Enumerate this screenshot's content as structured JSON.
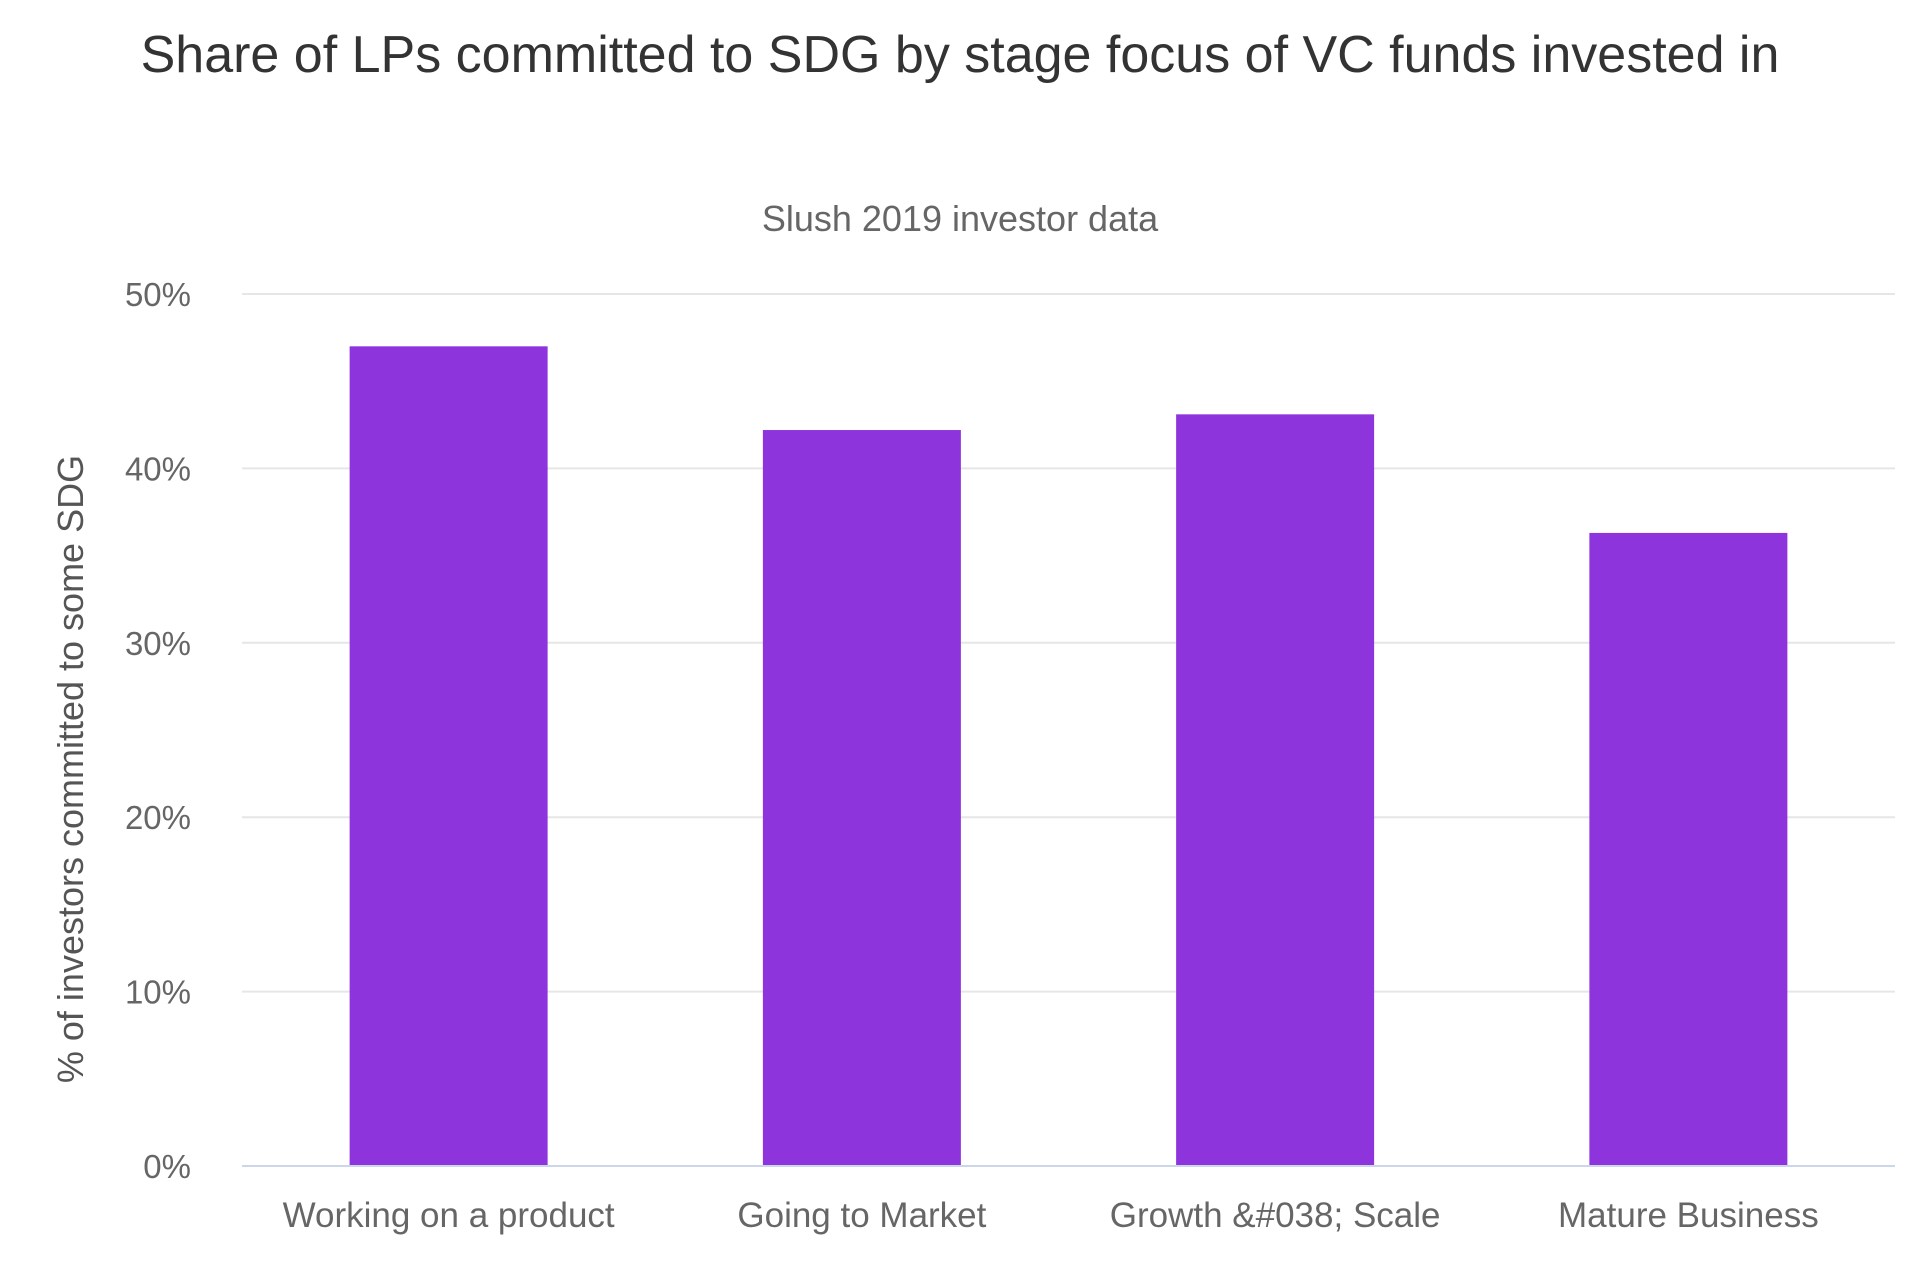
{
  "chart_data": {
    "type": "bar",
    "title": "Share of LPs committed to SDG by stage focus of VC funds invested in",
    "subtitle": "Slush 2019 investor data",
    "xlabel": "",
    "ylabel": "% of investors committed to some SDG",
    "categories": [
      "Working on a product",
      "Going to Market",
      "Growth &#038; Scale",
      "Mature Business"
    ],
    "values": [
      47,
      42.2,
      43.1,
      36.3
    ],
    "value_format": "percent",
    "ylim": [
      0,
      50
    ],
    "yticks": [
      0,
      10,
      20,
      30,
      40,
      50
    ],
    "ytick_labels": [
      "0%",
      "10%",
      "20%",
      "30%",
      "40%",
      "50%"
    ],
    "grid": true,
    "legend": "none",
    "colors": {
      "bar": "#8e34dd",
      "grid": "#e6e6e6",
      "axis": "#ccd6eb"
    }
  }
}
